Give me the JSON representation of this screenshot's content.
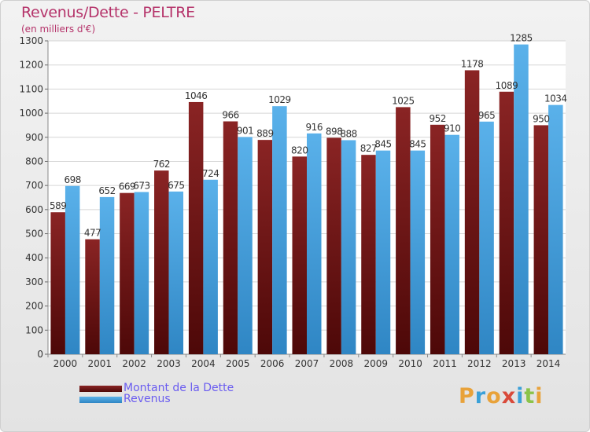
{
  "title": "Revenus/Dette - PELTRE",
  "subtitle": "(en milliers d'€)",
  "logo": {
    "text": "Proxiti",
    "letters": [
      "P",
      "r",
      "o",
      "x",
      "i",
      "t",
      "i"
    ],
    "colors": [
      "#e8a23a",
      "#3aa0d8",
      "#e8a23a",
      "#d94a3a",
      "#3aa0d8",
      "#8bc34a",
      "#e8a23a"
    ]
  },
  "colors": {
    "dette": "#7a1a1a",
    "revenus": "#4aa3e0",
    "title": "#b5336a",
    "legend_text": "#6a5cf0"
  },
  "legend": [
    {
      "label": "Montant de la Dette",
      "color": "#7a1a1a"
    },
    {
      "label": "Revenus",
      "color": "#4aa3e0"
    }
  ],
  "chart_data": {
    "type": "bar",
    "title": "Revenus/Dette - PELTRE",
    "subtitle": "(en milliers d'€)",
    "categories": [
      "2000",
      "2001",
      "2002",
      "2003",
      "2004",
      "2005",
      "2006",
      "2007",
      "2008",
      "2009",
      "2010",
      "2011",
      "2012",
      "2013",
      "2014"
    ],
    "series": [
      {
        "name": "Montant de la Dette",
        "values": [
          589,
          477,
          669,
          762,
          1046,
          966,
          889,
          820,
          898,
          827,
          1025,
          952,
          1178,
          1089,
          950
        ]
      },
      {
        "name": "Revenus",
        "values": [
          698,
          652,
          673,
          675,
          724,
          901,
          1029,
          916,
          888,
          845,
          845,
          910,
          965,
          1285,
          1034
        ]
      }
    ],
    "ylim": [
      0,
      1300
    ],
    "yticks": [
      0,
      100,
      200,
      300,
      400,
      500,
      600,
      700,
      800,
      900,
      1000,
      1100,
      1200,
      1300
    ],
    "grid": true,
    "legend_position": "bottom-left"
  }
}
